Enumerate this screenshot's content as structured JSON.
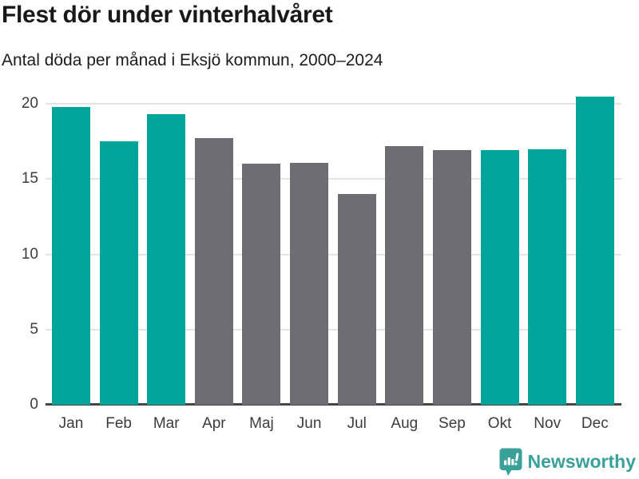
{
  "header": {
    "title": "Flest dör under vinterhalvåret",
    "subtitle": "Antal döda per månad i Eksjö kommun, 2000–2024"
  },
  "chart_data": {
    "type": "bar",
    "categories": [
      "Jan",
      "Feb",
      "Mar",
      "Apr",
      "Maj",
      "Jun",
      "Jul",
      "Aug",
      "Sep",
      "Okt",
      "Nov",
      "Dec"
    ],
    "values": [
      19.8,
      17.5,
      19.3,
      17.7,
      16.0,
      16.1,
      14.0,
      17.2,
      16.9,
      16.9,
      17.0,
      20.5
    ],
    "bar_color_roles": [
      "highlight",
      "highlight",
      "highlight",
      "muted",
      "muted",
      "muted",
      "muted",
      "muted",
      "muted",
      "highlight",
      "highlight",
      "highlight"
    ],
    "title": "Flest dör under vinterhalvåret",
    "subtitle": "Antal döda per månad i Eksjö kommun, 2000–2024",
    "xlabel": "",
    "ylabel": "",
    "y_ticks": [
      0,
      5,
      10,
      15,
      20
    ],
    "ylim": [
      0,
      20.9
    ],
    "grid": "horizontal",
    "legend": "none",
    "colors": {
      "highlight": "#00a49b",
      "muted": "#6e6d73",
      "gridline": "#e4e4e4",
      "axis": "#454545",
      "tick_text": "#3c3c3c"
    }
  },
  "footer": {
    "brand": "Newsworthy",
    "brand_color": "#3aa09a"
  }
}
